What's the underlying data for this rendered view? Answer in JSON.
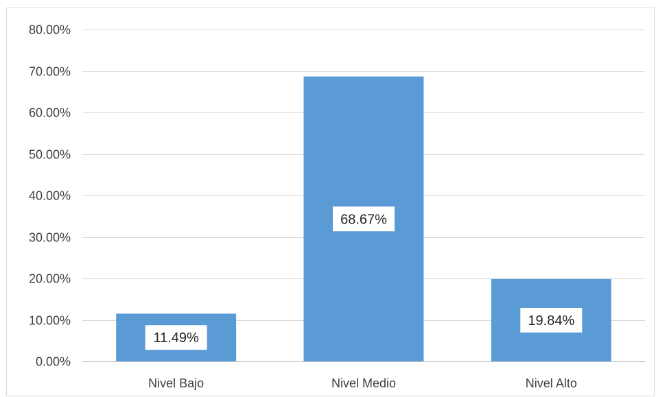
{
  "chart_data": {
    "type": "bar",
    "title": "",
    "xlabel": "",
    "ylabel": "",
    "categories": [
      "Nivel Bajo",
      "Nivel Medio",
      "Nivel Alto"
    ],
    "values": [
      11.49,
      68.67,
      19.84
    ],
    "data_labels": [
      "11.49%",
      "68.67%",
      "19.84%"
    ],
    "ylim": [
      0,
      80
    ],
    "yticks": [
      0,
      10,
      20,
      30,
      40,
      50,
      60,
      70,
      80
    ],
    "ytick_labels": [
      "0.00%",
      "10.00%",
      "20.00%",
      "30.00%",
      "40.00%",
      "50.00%",
      "60.00%",
      "70.00%",
      "80.00%"
    ],
    "grid": true,
    "legend": "none",
    "colors": {
      "bar": "#5b9bd5",
      "grid": "#d9d9d9",
      "axis": "#bfbfbf",
      "label_box": "#ffffff"
    }
  }
}
